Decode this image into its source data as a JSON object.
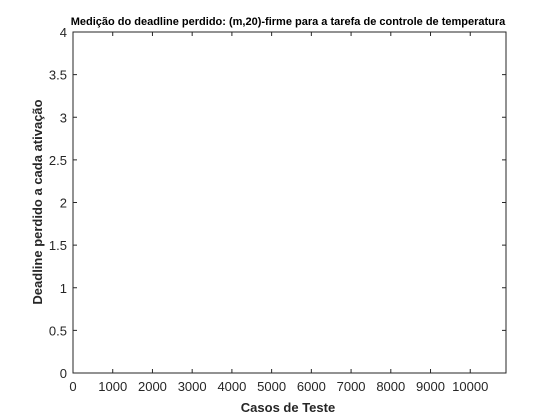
{
  "chart_data": {
    "type": "line",
    "title": "Medição do deadline perdido: (m,20)-firme para a tarefa de controle de temperatura",
    "xlabel": "Casos de Teste",
    "ylabel": "Deadline perdido a cada ativação",
    "xlim": [
      0,
      10900
    ],
    "ylim": [
      0,
      4
    ],
    "xticks": [
      0,
      1000,
      2000,
      3000,
      4000,
      5000,
      6000,
      7000,
      8000,
      9000,
      10000
    ],
    "yticks": [
      0,
      0.5,
      1,
      1.5,
      2,
      2.5,
      3,
      3.5,
      4
    ],
    "xtick_labels": [
      "0",
      "1000",
      "2000",
      "3000",
      "4000",
      "5000",
      "6000",
      "7000",
      "8000",
      "9000",
      "10000"
    ],
    "ytick_labels": [
      "0",
      "0.5",
      "1",
      "1.5",
      "2",
      "2.5",
      "3",
      "3.5",
      "4"
    ],
    "grid": false,
    "series": [
      {
        "values": []
      }
    ],
    "colors": {
      "axis": "#262626",
      "background": "#ffffff"
    }
  }
}
